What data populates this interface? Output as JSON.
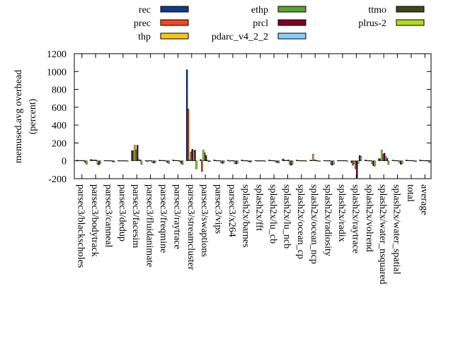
{
  "chart_data": {
    "type": "bar",
    "ylabel_line1": "memused.avg overhead",
    "ylabel_line2": "(percent)",
    "ylim": [
      -200,
      1200
    ],
    "yticks": [
      -200,
      0,
      200,
      400,
      600,
      800,
      1000,
      1200
    ],
    "grid": false,
    "legend_position": "top",
    "categories": [
      "parsec3/blackscholes",
      "parsec3/bodytrack",
      "parsec3/canneal",
      "parsec3/dedup",
      "parsec3/facesim",
      "parsec3/fluidanimate",
      "parsec3/freqmine",
      "parsec3/raytrace",
      "parsec3/streamcluster",
      "parsec3/swaptions",
      "parsec3/vips",
      "parsec3/x264",
      "splash2x/barnes",
      "splash2x/fft",
      "splash2x/lu_cb",
      "splash2x/lu_ncb",
      "splash2x/ocean_cp",
      "splash2x/ocean_ncp",
      "splash2x/radiosity",
      "splash2x/radix",
      "splash2x/raytrace",
      "splash2x/volrend",
      "splash2x/water_nsquared",
      "splash2x/water_spatial",
      "total",
      "average"
    ],
    "series": [
      {
        "name": "rec",
        "color": "#0b3d91",
        "values": [
          8,
          15,
          5,
          3,
          115,
          5,
          8,
          10,
          1020,
          15,
          10,
          8,
          10,
          5,
          10,
          20,
          8,
          8,
          5,
          5,
          -20,
          10,
          25,
          8,
          10,
          10
        ]
      },
      {
        "name": "prec",
        "color": "#f04a1a",
        "values": [
          5,
          10,
          3,
          2,
          110,
          -10,
          5,
          5,
          580,
          -120,
          5,
          -5,
          5,
          3,
          5,
          10,
          5,
          5,
          3,
          3,
          -50,
          5,
          20,
          5,
          5,
          5
        ]
      },
      {
        "name": "thp",
        "color": "#f5c518",
        "values": [
          5,
          8,
          3,
          2,
          175,
          3,
          5,
          5,
          10,
          120,
          3,
          3,
          3,
          2,
          3,
          5,
          3,
          75,
          3,
          3,
          -30,
          3,
          120,
          3,
          5,
          5
        ]
      },
      {
        "name": "ethp",
        "color": "#55a630",
        "values": [
          5,
          10,
          3,
          2,
          120,
          3,
          5,
          5,
          100,
          90,
          3,
          3,
          3,
          2,
          3,
          5,
          3,
          10,
          3,
          3,
          -90,
          3,
          75,
          3,
          5,
          5
        ]
      },
      {
        "name": "prcl",
        "color": "#800020",
        "values": [
          3,
          8,
          2,
          2,
          175,
          3,
          3,
          3,
          130,
          60,
          3,
          3,
          3,
          2,
          3,
          10,
          3,
          8,
          3,
          3,
          -190,
          3,
          85,
          3,
          3,
          3
        ]
      },
      {
        "name": "pdarc_v4_2_2",
        "color": "#87cefa",
        "values": [
          5,
          -40,
          3,
          2,
          15,
          -20,
          -5,
          -10,
          110,
          5,
          -20,
          -30,
          -10,
          2,
          -15,
          -40,
          3,
          3,
          -40,
          3,
          -30,
          -30,
          50,
          -20,
          5,
          5
        ]
      },
      {
        "name": "ttmo",
        "color": "#3a4a10",
        "values": [
          -20,
          -45,
          -10,
          2,
          10,
          -25,
          -20,
          -30,
          120,
          -10,
          -30,
          -35,
          -15,
          2,
          -20,
          -50,
          3,
          -5,
          -50,
          3,
          60,
          -55,
          30,
          -40,
          -5,
          -5
        ]
      },
      {
        "name": "plrus-2",
        "color": "#aedb1f",
        "values": [
          -40,
          -30,
          -15,
          -3,
          -40,
          -20,
          -30,
          -40,
          -90,
          -5,
          -20,
          -30,
          -10,
          -5,
          -25,
          -40,
          -5,
          -5,
          -40,
          -5,
          50,
          -60,
          -40,
          -30,
          -10,
          -20
        ]
      }
    ]
  }
}
